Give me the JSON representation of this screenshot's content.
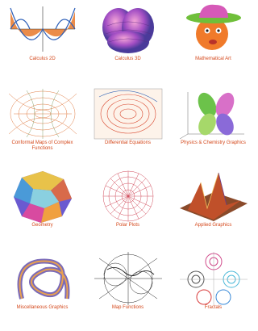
{
  "gallery": {
    "items": [
      {
        "caption": "Calculus 2D"
      },
      {
        "caption": "Calculus 3D"
      },
      {
        "caption": "Mathematical Art"
      },
      {
        "caption": "Conformal Maps of Complex Functions"
      },
      {
        "caption": "Differential Equations"
      },
      {
        "caption": "Physics & Chemistry Graphics"
      },
      {
        "caption": "Geometry"
      },
      {
        "caption": "Polar Plots"
      },
      {
        "caption": "Applied Graphics"
      },
      {
        "caption": "Miscellaneous Graphics"
      },
      {
        "caption": "Map Functions"
      },
      {
        "caption": "Fractals"
      }
    ]
  }
}
